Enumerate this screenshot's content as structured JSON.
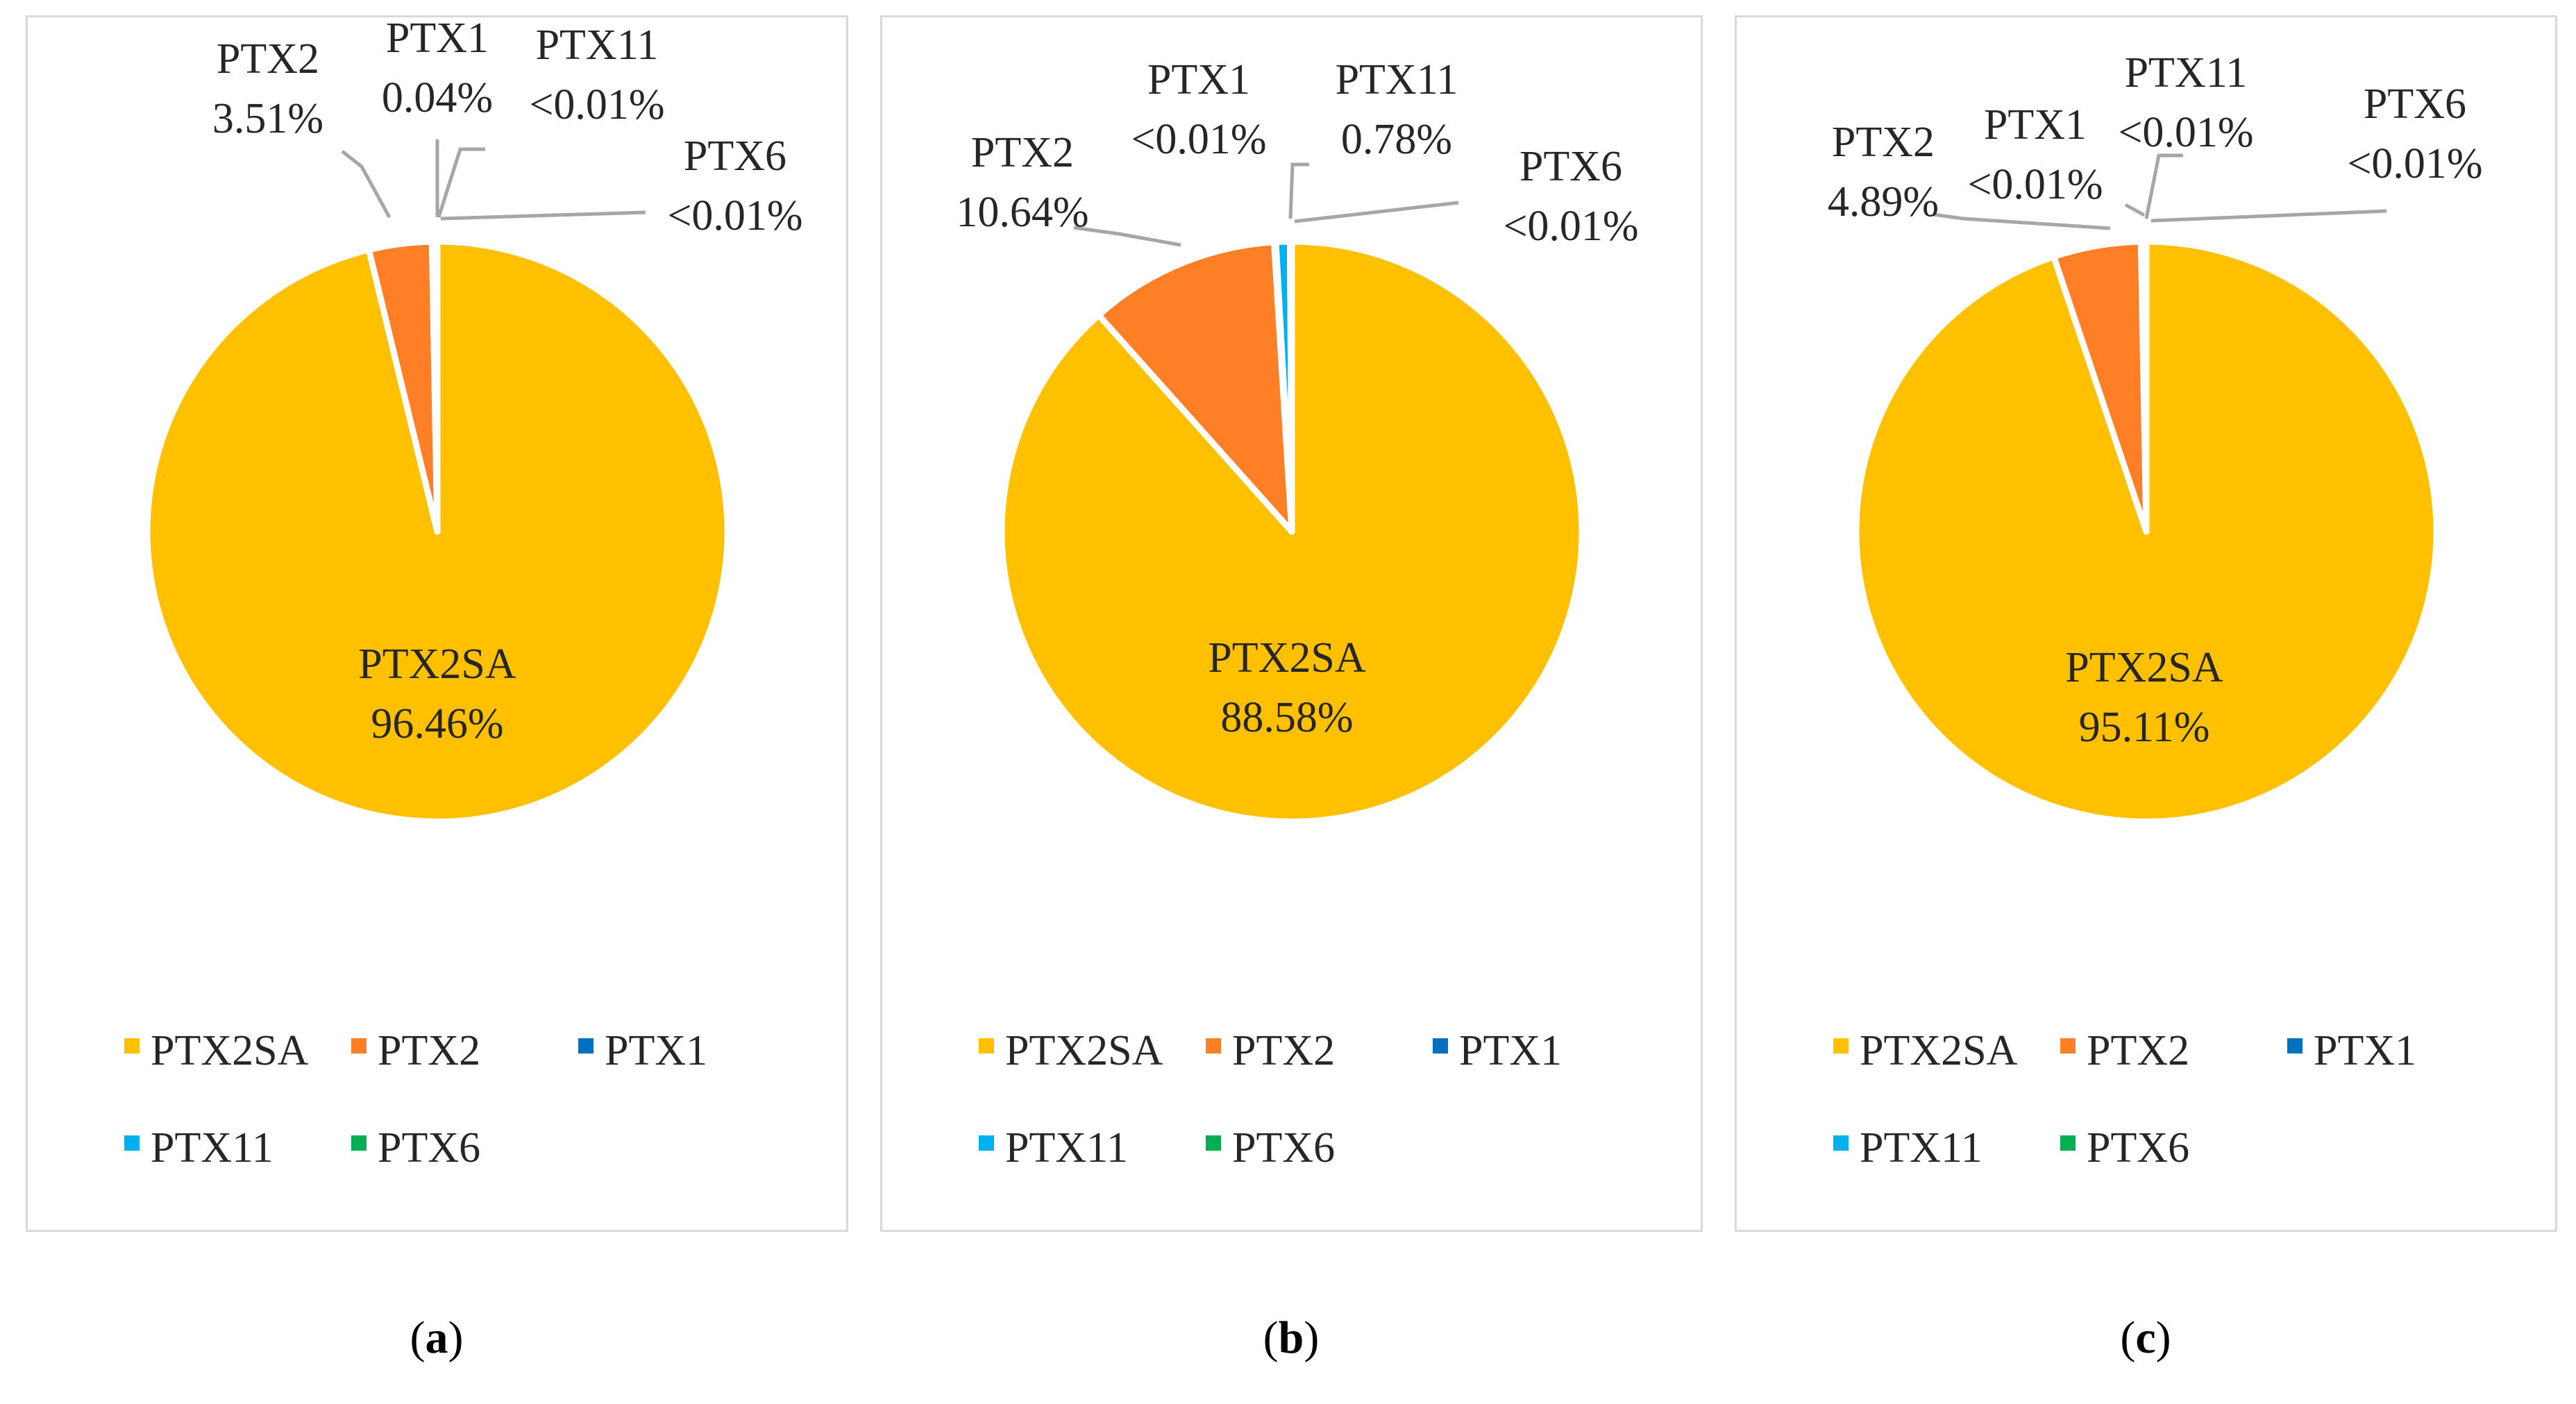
{
  "colors": {
    "PTX2SA": "#FFC000",
    "PTX2": "#FF7F27",
    "PTX1": "#0070C0",
    "PTX11": "#00B0F0",
    "PTX6": "#00B050",
    "leader": "#a6a6a6",
    "border": "#d9d9d9"
  },
  "legend": [
    "PTX2SA",
    "PTX2",
    "PTX1",
    "PTX11",
    "PTX6"
  ],
  "chart_data": [
    {
      "type": "pie",
      "panel": "a",
      "caption": "a",
      "slices": [
        {
          "label": "PTX2SA",
          "value": 96.46,
          "text": "96.46%"
        },
        {
          "label": "PTX2",
          "value": 3.51,
          "text": "3.51%"
        },
        {
          "label": "PTX1",
          "value": 0.04,
          "text": "0.04%"
        },
        {
          "label": "PTX11",
          "value": 0.005,
          "text": "<0.01%"
        },
        {
          "label": "PTX6",
          "value": 0.005,
          "text": "<0.01%"
        }
      ],
      "legend": [
        "PTX2SA",
        "PTX2",
        "PTX1",
        "PTX11",
        "PTX6"
      ]
    },
    {
      "type": "pie",
      "panel": "b",
      "caption": "b",
      "slices": [
        {
          "label": "PTX2SA",
          "value": 88.58,
          "text": "88.58%"
        },
        {
          "label": "PTX2",
          "value": 10.64,
          "text": "10.64%"
        },
        {
          "label": "PTX1",
          "value": 0.005,
          "text": "<0.01%"
        },
        {
          "label": "PTX11",
          "value": 0.78,
          "text": "0.78%"
        },
        {
          "label": "PTX6",
          "value": 0.005,
          "text": "<0.01%"
        }
      ],
      "legend": [
        "PTX2SA",
        "PTX2",
        "PTX1",
        "PTX11",
        "PTX6"
      ]
    },
    {
      "type": "pie",
      "panel": "c",
      "caption": "c",
      "slices": [
        {
          "label": "PTX2SA",
          "value": 95.11,
          "text": "95.11%"
        },
        {
          "label": "PTX2",
          "value": 4.89,
          "text": "4.89%"
        },
        {
          "label": "PTX1",
          "value": 0.005,
          "text": "<0.01%"
        },
        {
          "label": "PTX11",
          "value": 0.005,
          "text": "<0.01%"
        },
        {
          "label": "PTX6",
          "value": 0.005,
          "text": "<0.01%"
        }
      ],
      "legend": [
        "PTX2SA",
        "PTX2",
        "PTX1",
        "PTX11",
        "PTX6"
      ]
    }
  ]
}
